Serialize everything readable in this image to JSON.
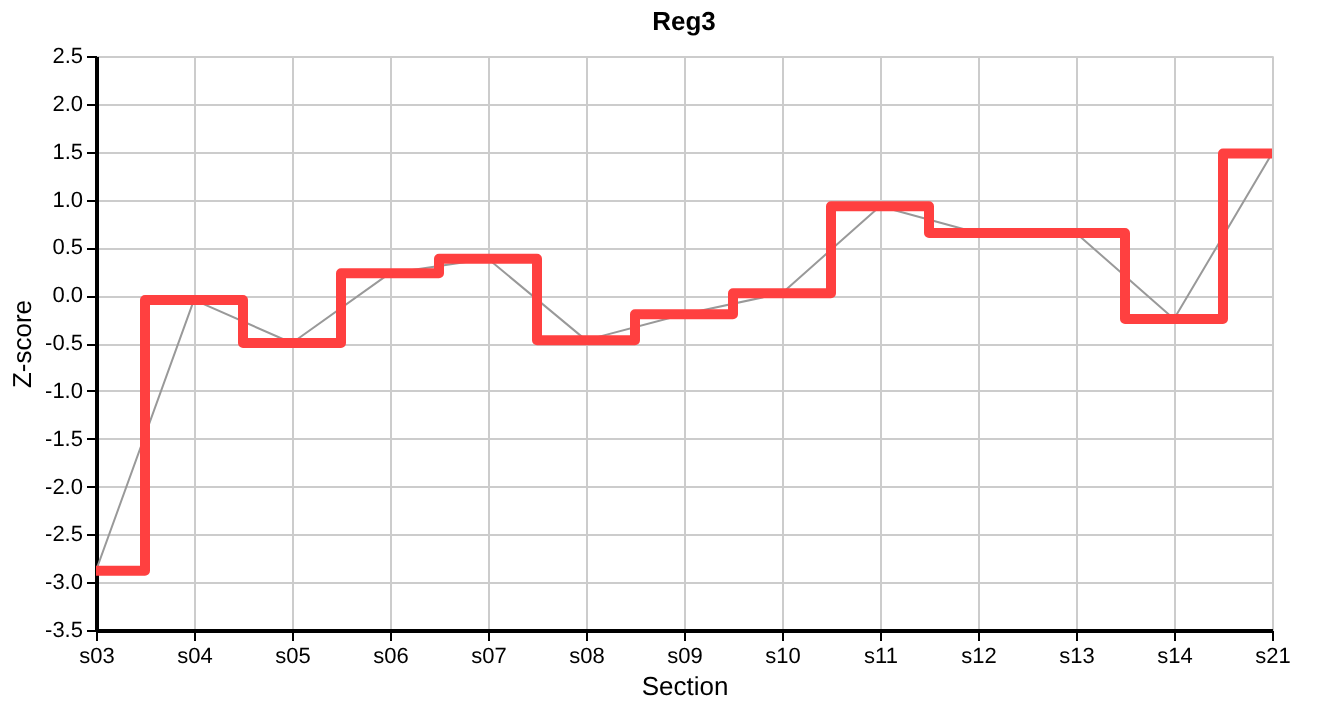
{
  "chart_data": {
    "type": "line",
    "title": "Reg3",
    "xlabel": "Section",
    "ylabel": "Z-score",
    "categories": [
      "s03",
      "s04",
      "s05",
      "s06",
      "s07",
      "s08",
      "s09",
      "s10",
      "s11",
      "s12",
      "s13",
      "s14",
      "s21"
    ],
    "series": [
      {
        "type": "line",
        "color": "#999999",
        "values": [
          -2.88,
          -0.05,
          -0.5,
          0.23,
          0.38,
          -0.47,
          -0.2,
          0.02,
          0.93,
          0.65,
          0.65,
          -0.25,
          1.48
        ]
      },
      {
        "type": "step",
        "color": "#ff4040",
        "values": [
          -2.88,
          -0.05,
          -0.5,
          0.23,
          0.38,
          -0.47,
          -0.2,
          0.02,
          0.93,
          0.65,
          0.65,
          -0.25,
          1.48
        ]
      }
    ],
    "ylim": [
      -3.5,
      2.5
    ],
    "yticks": [
      -3.5,
      {
        "value": -3,
        "label": "-3.0"
      },
      -2.5,
      {
        "value": -2,
        "label": "-2.0"
      },
      -1.5,
      {
        "value": -1,
        "label": "-1.0"
      },
      -0.5,
      {
        "value": 0,
        "label": "0.0"
      },
      0.5,
      {
        "value": 1,
        "label": "1.0"
      },
      1.5,
      {
        "value": 2,
        "label": "2.0"
      },
      2.5
    ],
    "grid": true
  }
}
